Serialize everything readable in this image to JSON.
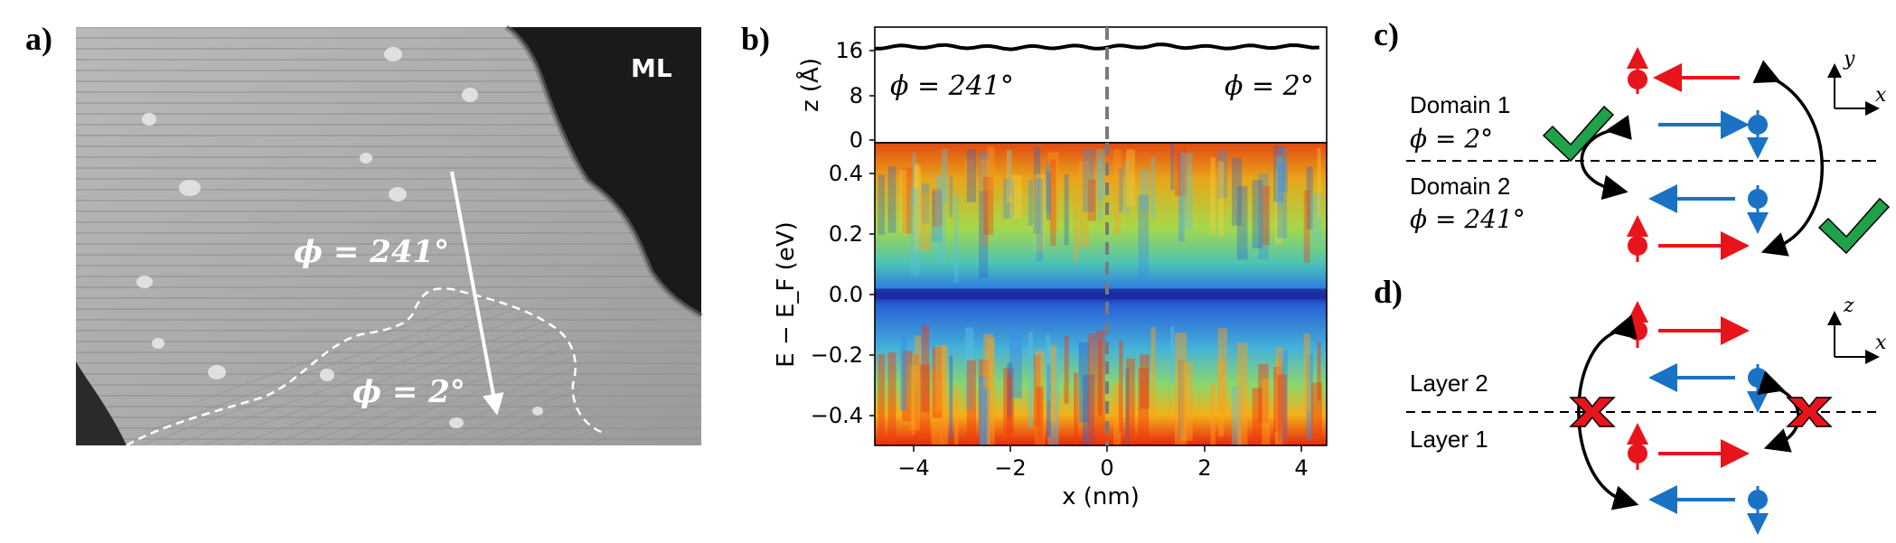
{
  "panels": {
    "a": {
      "letter": "a)",
      "region_label": "ML",
      "angle_upper": "ϕ = 241°",
      "angle_lower": "ϕ = 2°"
    },
    "b": {
      "letter": "b)",
      "top_left_label": "ϕ = 241°",
      "top_right_label": "ϕ = 2°",
      "top_ylabel": "z (Å)",
      "top_yticks": [
        "16",
        "8",
        "0"
      ],
      "main_ylabel": "E − E_F (eV)",
      "main_yticks": [
        "0.4",
        "0.2",
        "0.0",
        "−0.2",
        "−0.4"
      ],
      "xlabel": "x (nm)",
      "xticks": [
        "−4",
        "−2",
        "0",
        "2",
        "4"
      ]
    },
    "c": {
      "letter": "c)",
      "domain1": "Domain 1",
      "domain1_angle": "ϕ = 2°",
      "domain2": "Domain 2",
      "domain2_angle": "ϕ = 241°",
      "axis_a": "y",
      "axis_b": "x"
    },
    "d": {
      "letter": "d)",
      "layer2": "Layer 2",
      "layer1": "Layer 1",
      "axis_a": "z",
      "axis_b": "x"
    }
  },
  "colors": {
    "spin_red": "#e8141c",
    "spin_blue": "#1a72c4",
    "check_green": "#1fa24a",
    "cross_red": "#e8141c"
  },
  "chart_data": {
    "type": "heatmap",
    "title": "",
    "xlabel": "x (nm)",
    "ylabel": "E − E_F (eV)",
    "xlim": [
      -4.8,
      4.5
    ],
    "ylim": [
      -0.5,
      0.5
    ],
    "colormap": "jet",
    "features": {
      "dip_energy_eV": 0.0,
      "domain_boundary_x_nm": 0.0
    },
    "top_profile": {
      "ylabel": "z (Å)",
      "ylim": [
        0,
        20
      ],
      "x": [
        -4.8,
        -3.5,
        -2.0,
        -1.0,
        0.0,
        1.0,
        2.0,
        3.0,
        4.5
      ],
      "z": [
        16.5,
        16.7,
        16.4,
        16.6,
        16.5,
        16.8,
        16.5,
        16.6,
        16.7
      ]
    }
  }
}
